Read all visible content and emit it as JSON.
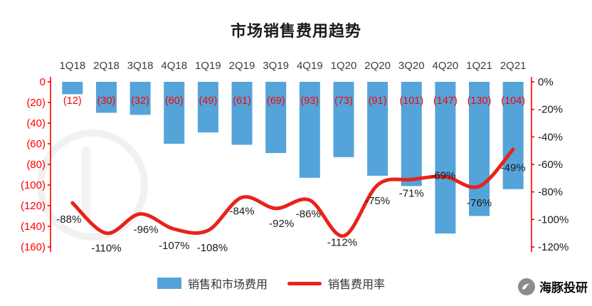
{
  "title": "市场销售费用趋势",
  "legend": [
    {
      "label": "销售和市场费用",
      "type": "bar",
      "color": "#54a4da"
    },
    {
      "label": "销售费用率",
      "type": "line",
      "color": "#e8231a"
    }
  ],
  "watermark": {
    "brand": "海豚投研"
  },
  "chart_data": {
    "type": "bar",
    "title": "市场销售费用趋势",
    "categories": [
      "1Q18",
      "2Q18",
      "3Q18",
      "4Q18",
      "1Q19",
      "2Q19",
      "3Q19",
      "4Q19",
      "1Q20",
      "2Q20",
      "3Q20",
      "4Q20",
      "1Q21",
      "2Q21"
    ],
    "series": [
      {
        "name": "销售和市场费用",
        "type": "bar",
        "color": "#54a4da",
        "values": [
          -12,
          -30,
          -32,
          -60,
          -49,
          -61,
          -69,
          -93,
          -73,
          -91,
          -101,
          -147,
          -130,
          -104
        ],
        "labels": [
          "(12)",
          "(30)",
          "(32)",
          "(60)",
          "(49)",
          "(61)",
          "(69)",
          "(93)",
          "(73)",
          "(91)",
          "(101)",
          "(147)",
          "(130)",
          "(104)"
        ]
      },
      {
        "name": "销售费用率",
        "type": "line",
        "color": "#e8231a",
        "values": [
          -88,
          -110,
          -96,
          -107,
          -108,
          -84,
          -92,
          -86,
          -112,
          -75,
          -71,
          -69,
          -76,
          -49
        ],
        "labels": [
          "-88%",
          "-110%",
          "-96%",
          "-107%",
          "-108%",
          "-84%",
          "-92%",
          "-86%",
          "-112%",
          "-75%",
          "-71%",
          "-69%",
          "-76%",
          "-49%"
        ]
      }
    ],
    "left_axis": {
      "ticks": [
        "0",
        "(20)",
        "(40)",
        "(60)",
        "(80)",
        "(100)",
        "(120)",
        "(140)",
        "(160)"
      ],
      "range": [
        0,
        -160
      ],
      "color": "#ff0000"
    },
    "right_axis": {
      "ticks": [
        "0%",
        "-20%",
        "-40%",
        "-60%",
        "-80%",
        "-100%",
        "-120%"
      ],
      "range": [
        0,
        -120
      ],
      "color": "#1a1a1a"
    },
    "legend_position": "bottom",
    "grid": false,
    "category_labels_position": "top"
  }
}
